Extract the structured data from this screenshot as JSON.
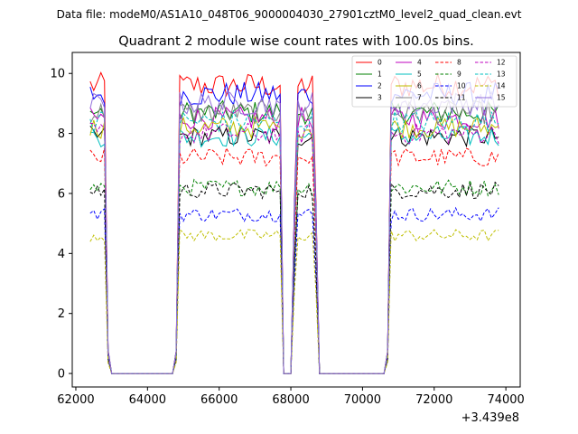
{
  "figure": {
    "suptitle": "Data file: modeM0/AS1A10_048T06_9000004030_27901cztM0_level2_quad_clean.evt"
  },
  "chart_data": {
    "type": "line",
    "title": "Quadrant 2 module wise count rates with 100.0s bins.",
    "xlabel": "",
    "ylabel": "",
    "x_offset_label": "+3.439e8",
    "xlim": [
      61900,
      74400
    ],
    "ylim": [
      -0.45,
      10.7
    ],
    "xticks": [
      62000,
      64000,
      66000,
      68000,
      70000,
      72000,
      74000
    ],
    "xtick_labels": [
      "62000",
      "64000",
      "66000",
      "68000",
      "70000",
      "72000",
      "74000"
    ],
    "yticks": [
      0,
      2,
      4,
      6,
      8,
      10
    ],
    "ytick_labels": [
      "0",
      "2",
      "4",
      "6",
      "8",
      "10"
    ],
    "grid": false,
    "legend_position": "top-right",
    "bins": {
      "description": "100 s bins, zero during data gaps",
      "segments": [
        [
          62400,
          62900
        ],
        [
          64800,
          67700
        ],
        [
          68100,
          68700
        ],
        [
          70700,
          73800
        ]
      ],
      "gaps_zero": [
        [
          63000,
          64700
        ],
        [
          67800,
          68000
        ],
        [
          68800,
          70600
        ]
      ]
    },
    "series": [
      {
        "name": "0",
        "color": "#ff0000",
        "style": "solid",
        "level": 9.6
      },
      {
        "name": "1",
        "color": "#008000",
        "style": "solid",
        "level": 8.7
      },
      {
        "name": "2",
        "color": "#0000ff",
        "style": "solid",
        "level": 9.3
      },
      {
        "name": "3",
        "color": "#000000",
        "style": "solid",
        "level": 7.9
      },
      {
        "name": "4",
        "color": "#bf00bf",
        "style": "solid",
        "level": 8.5
      },
      {
        "name": "5",
        "color": "#00bfbf",
        "style": "solid",
        "level": 7.9
      },
      {
        "name": "6",
        "color": "#bfbf00",
        "style": "solid",
        "level": 8.2
      },
      {
        "name": "7",
        "color": "#808080",
        "style": "solid",
        "level": 8.7
      },
      {
        "name": "8",
        "color": "#ff0000",
        "style": "dashed",
        "level": 7.2
      },
      {
        "name": "9",
        "color": "#008000",
        "style": "dashed",
        "level": 6.2
      },
      {
        "name": "10",
        "color": "#0000ff",
        "style": "dashed",
        "level": 5.3
      },
      {
        "name": "11",
        "color": "#000000",
        "style": "dashed",
        "level": 6.1
      },
      {
        "name": "12",
        "color": "#bf00bf",
        "style": "dashed",
        "level": 8.0
      },
      {
        "name": "13",
        "color": "#00bfbf",
        "style": "dashed",
        "level": 8.4
      },
      {
        "name": "14",
        "color": "#bfbf00",
        "style": "dashed",
        "level": 4.6
      },
      {
        "name": "15",
        "color": "#9370db",
        "style": "solid",
        "level": 9.0
      }
    ]
  }
}
